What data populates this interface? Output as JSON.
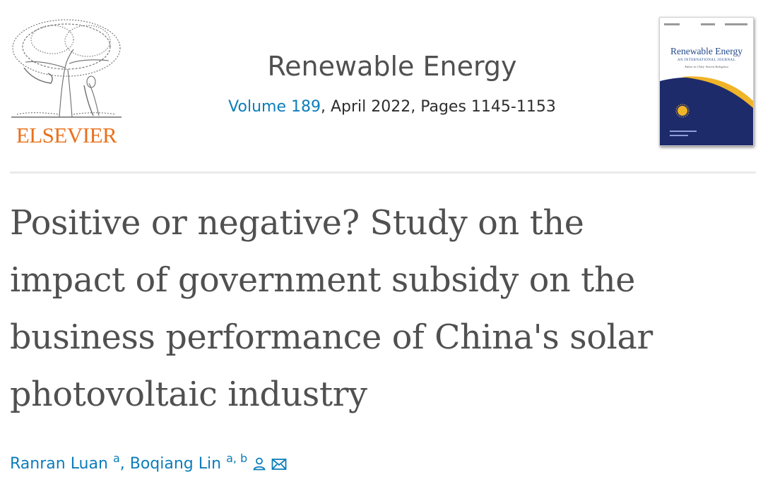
{
  "publisher": {
    "name": "ELSEVIER",
    "color": "#e9711c"
  },
  "journal": {
    "title": "Renewable Energy",
    "volume_link": "Volume 189",
    "issue_rest": ", April 2022, Pages 1145-1153",
    "link_color": "#0c7dbb"
  },
  "cover": {
    "title": "Renewable Energy",
    "subtitle": "AN INTERNATIONAL JOURNAL",
    "editor": "Editor in Chief: Soteris Kalogirou",
    "colors": {
      "navy": "#1d2b6b",
      "gold": "#f0b429"
    }
  },
  "article": {
    "title_lines": [
      "Positive or negative? Study on the",
      "impact of government subsidy on the",
      "business performance of China's solar",
      "photovoltaic industry"
    ]
  },
  "authors": [
    {
      "name": "Ranran Luan",
      "affil": "a"
    },
    {
      "name": "Boqiang Lin",
      "affil": "a, b"
    }
  ],
  "icons": [
    "person-icon",
    "envelope-icon"
  ]
}
